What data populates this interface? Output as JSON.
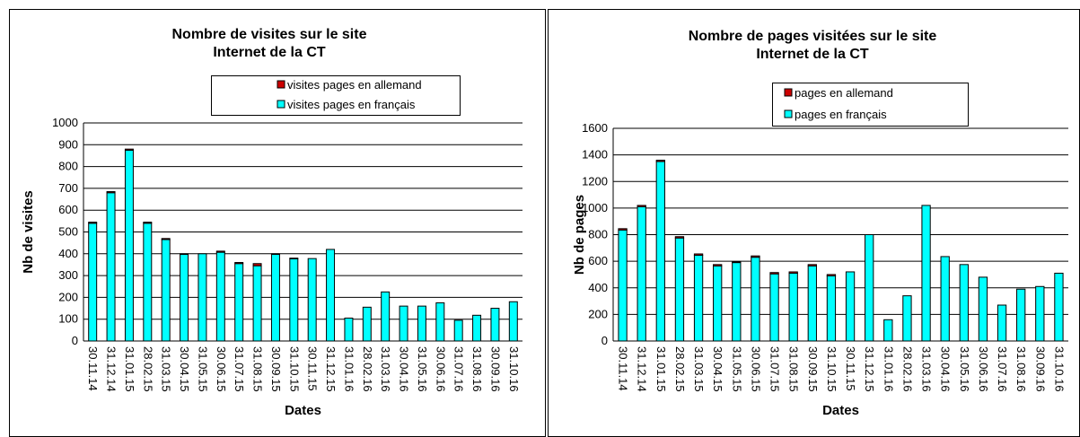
{
  "chart_data": [
    {
      "type": "bar",
      "stacked": true,
      "title": [
        "Nombre de visites sur le site",
        "Internet de la CT"
      ],
      "x_label": "Dates",
      "y_label": "Nb de visites",
      "categories": [
        "30.11.14",
        "31.12.14",
        "31.01.15",
        "28.02.15",
        "31.03.15",
        "30.04.15",
        "31.05.15",
        "30.06.15",
        "31.07.15",
        "31.08.15",
        "30.09.15",
        "31.10.15",
        "30.11.15",
        "31.12.15",
        "31.01.16",
        "28.02.16",
        "31.03.16",
        "30.04.16",
        "31.05.16",
        "30.06.16",
        "31.07.16",
        "31.08.16",
        "30.09.16",
        "31.10.16"
      ],
      "series": [
        {
          "name": "visites pages en français",
          "color": "#00ffff",
          "values": [
            540,
            680,
            875,
            540,
            465,
            397,
            400,
            407,
            355,
            345,
            397,
            377,
            378,
            420,
            105,
            155,
            225,
            160,
            160,
            175,
            95,
            118,
            150,
            180
          ]
        },
        {
          "name": "visites pages en allemand",
          "color": "#cc0000",
          "values": [
            5,
            5,
            5,
            5,
            5,
            3,
            0,
            5,
            5,
            10,
            3,
            3,
            0,
            0,
            0,
            0,
            0,
            0,
            0,
            0,
            0,
            0,
            0,
            0
          ]
        }
      ],
      "ylim": [
        0,
        1000
      ],
      "yticks": [
        0,
        100,
        200,
        300,
        400,
        500,
        600,
        700,
        800,
        900,
        1000
      ],
      "grid": true,
      "legend": "top"
    },
    {
      "type": "bar",
      "stacked": true,
      "title": [
        "Nombre de pages visitées sur le site",
        "Internet de la CT"
      ],
      "x_label": "Dates",
      "y_label": "Nb de pages",
      "categories": [
        "30.11.14",
        "31.12.14",
        "31.01.15",
        "28.02.15",
        "31.03.15",
        "30.04.15",
        "31.05.15",
        "30.06.15",
        "31.07.15",
        "31.08.15",
        "30.09.15",
        "31.10.15",
        "30.11.15",
        "31.12.15",
        "31.01.16",
        "28.02.16",
        "31.03.16",
        "30.04.16",
        "31.05.16",
        "30.06.16",
        "31.07.16",
        "31.08.16",
        "30.09.16",
        "31.10.16"
      ],
      "series": [
        {
          "name": "pages en français",
          "color": "#00ffff",
          "values": [
            835,
            1010,
            1350,
            775,
            645,
            565,
            590,
            630,
            505,
            510,
            565,
            490,
            520,
            800,
            160,
            340,
            1020,
            635,
            575,
            480,
            270,
            390,
            410,
            510
          ]
        },
        {
          "name": "pages en allemand",
          "color": "#cc0000",
          "values": [
            10,
            10,
            10,
            10,
            10,
            10,
            5,
            10,
            10,
            10,
            10,
            10,
            0,
            0,
            0,
            0,
            0,
            0,
            0,
            0,
            0,
            0,
            0,
            0
          ]
        }
      ],
      "ylim": [
        0,
        1600
      ],
      "yticks": [
        0,
        200,
        400,
        600,
        800,
        1000,
        1200,
        1400,
        1600
      ],
      "grid": true,
      "legend": "top"
    }
  ]
}
